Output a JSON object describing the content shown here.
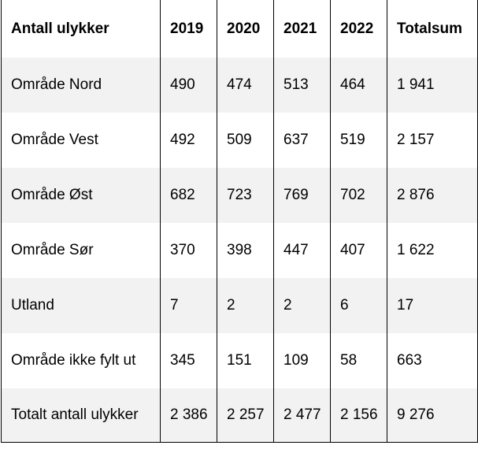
{
  "table": {
    "headers": [
      "Antall ulykker",
      "2019",
      "2020",
      "2021",
      "2022",
      "Totalsum"
    ],
    "rows": [
      [
        "Område Nord",
        "490",
        "474",
        "513",
        "464",
        "1 941"
      ],
      [
        "Område Vest",
        "492",
        "509",
        "637",
        "519",
        "2 157"
      ],
      [
        "Område Øst",
        "682",
        "723",
        "769",
        "702",
        "2 876"
      ],
      [
        "Område Sør",
        "370",
        "398",
        "447",
        "407",
        "1 622"
      ],
      [
        "Utland",
        "7",
        "2",
        "2",
        "6",
        "17"
      ],
      [
        "Område ikke fylt ut",
        "345",
        "151",
        "109",
        "58",
        "663"
      ],
      [
        "Totalt antall ulykker",
        "2 386",
        "2 257",
        "2 477",
        "2 156",
        "9 276"
      ]
    ]
  },
  "colors": {
    "row_shade": "#f2f2f2",
    "row_plain": "#ffffff",
    "border": "#000000"
  }
}
